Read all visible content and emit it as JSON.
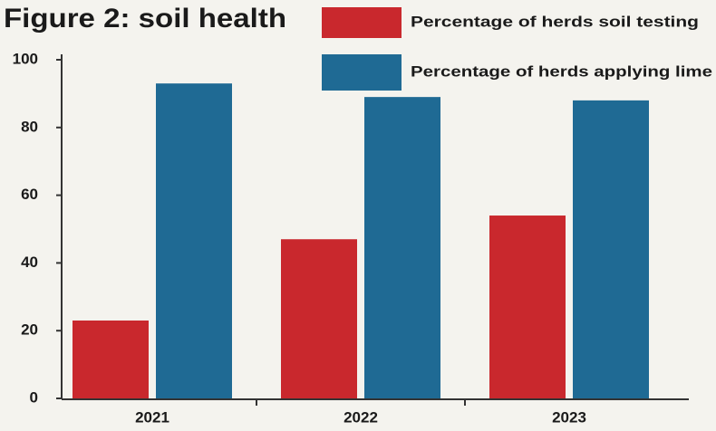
{
  "chart_data": {
    "type": "bar",
    "title": "Figure 2: soil health",
    "categories": [
      "2021",
      "2022",
      "2023"
    ],
    "series": [
      {
        "name": "Percentage of herds soil testing",
        "color": "#c9282d",
        "values": [
          23,
          47,
          54
        ]
      },
      {
        "name": "Percentage of herds applying lime",
        "color": "#1f6a94",
        "values": [
          93,
          89,
          88
        ]
      }
    ],
    "ylim": [
      0,
      100
    ],
    "yticks": [
      0,
      20,
      40,
      60,
      80,
      100
    ],
    "legend": "top-right"
  }
}
